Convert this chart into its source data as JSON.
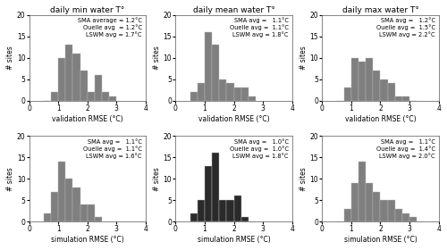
{
  "titles": [
    "daily min water T°",
    "daily mean water T°",
    "daily max water T°"
  ],
  "xlabel_val": "validation RMSE (°C)",
  "xlabel_sim": "simulation RMSE (°C)",
  "ylabel": "# sites",
  "xlim": [
    0,
    4
  ],
  "ylim": [
    0,
    20
  ],
  "yticks": [
    0,
    5,
    10,
    15,
    20
  ],
  "xticks": [
    0,
    1,
    2,
    3,
    4
  ],
  "val_min_bins": [
    0.5,
    0.75,
    1.0,
    1.25,
    1.5,
    1.75,
    2.0,
    2.25,
    2.5,
    2.75
  ],
  "val_min_counts": [
    0,
    2,
    10,
    13,
    11,
    7,
    2,
    6,
    2,
    1
  ],
  "val_mean_bins": [
    0.5,
    0.75,
    1.0,
    1.25,
    1.5,
    1.75,
    2.0,
    2.25,
    2.5
  ],
  "val_mean_counts": [
    2,
    4,
    16,
    13,
    5,
    4,
    3,
    3,
    1
  ],
  "val_max_bins": [
    0.5,
    0.75,
    1.0,
    1.25,
    1.5,
    1.75,
    2.0,
    2.25,
    2.5,
    2.75,
    3.0
  ],
  "val_max_counts": [
    0,
    3,
    10,
    9,
    10,
    7,
    5,
    4,
    1,
    1,
    0
  ],
  "sim_min_bins": [
    0.5,
    0.75,
    1.0,
    1.25,
    1.5,
    1.75,
    2.0,
    2.25
  ],
  "sim_min_counts": [
    2,
    7,
    14,
    10,
    8,
    4,
    4,
    1
  ],
  "sim_mean_bins": [
    0.5,
    0.75,
    1.0,
    1.25,
    1.5,
    1.75,
    2.0,
    2.25,
    2.5
  ],
  "sim_mean_counts": [
    2,
    5,
    13,
    16,
    5,
    5,
    6,
    1,
    0
  ],
  "sim_max_bins": [
    0.5,
    0.75,
    1.0,
    1.25,
    1.5,
    1.75,
    2.0,
    2.25,
    2.5,
    2.75,
    3.0,
    3.25
  ],
  "sim_max_counts": [
    0,
    3,
    9,
    14,
    9,
    7,
    5,
    5,
    3,
    2,
    1,
    0
  ],
  "annotations_val": [
    "SMA average = 1.2°C\nOuelle avg  = 1.2°C\nLSWM avg = 1.7°C",
    "SMA avg =   1.1°C\nOuelle avg =  1.1°C\nLSWM avg = 1.8°C",
    "SMA avg =   1.2°C\nOuelle avg =  1.5°C\nLSWM avg = 2.2°C"
  ],
  "annotations_sim": [
    "SMA avg =   1.1°C\nOuelle avg =  1.1°C\nLSWM avg = 1.6°C",
    "SMA avg =   1.0°C\nOuelle avg =  1.0°C\nLSWM avg = 1.8°C",
    "SMA avg =   1.1°C\nOuelle avg =  1.4°C\nLSWM avg = 2.0°C"
  ],
  "bar_color_light": "#7f7f7f",
  "bar_color_dark": "#2a2a2a",
  "bar_width": 0.25,
  "bar_edge_color": "#bbbbbb",
  "background_color": "#ffffff",
  "title_fontsize": 6.5,
  "label_fontsize": 5.5,
  "tick_fontsize": 5.5,
  "annot_fontsize": 4.8
}
